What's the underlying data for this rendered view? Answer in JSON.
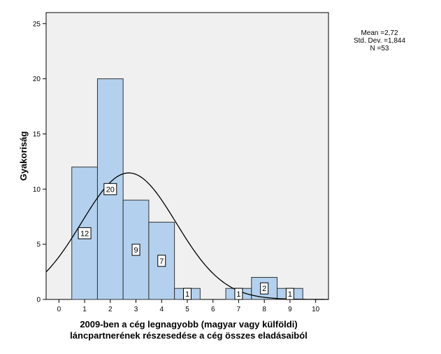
{
  "chart_data": {
    "type": "bar",
    "subtype": "histogram",
    "xlabel_line1": "2009-ben a cég legnagyobb (magyar vagy külföldi)",
    "xlabel_line2": "láncpartnerének részesedése a cég összes eladásaiból",
    "ylabel": "Gyakoriság",
    "xlim": [
      -0.5,
      10.5
    ],
    "ylim": [
      0,
      26
    ],
    "x_ticks": [
      "0",
      "1",
      "2",
      "3",
      "4",
      "5",
      "6",
      "7",
      "8",
      "9",
      "10"
    ],
    "y_ticks": [
      "0",
      "5",
      "10",
      "15",
      "20",
      "25"
    ],
    "bins": [
      {
        "x": 1,
        "count": 12,
        "label": "12"
      },
      {
        "x": 2,
        "count": 20,
        "label": "20"
      },
      {
        "x": 3,
        "count": 9,
        "label": "9"
      },
      {
        "x": 4,
        "count": 7,
        "label": "7"
      },
      {
        "x": 5,
        "count": 1,
        "label": "1"
      },
      {
        "x": 7,
        "count": 1,
        "label": "1"
      },
      {
        "x": 8,
        "count": 2,
        "label": "2"
      },
      {
        "x": 9,
        "count": 1,
        "label": "1"
      }
    ],
    "bin_width": 1,
    "normal_curve": true,
    "stats": {
      "mean": 2.72,
      "std_dev": 1.844,
      "n": 53,
      "mean_text": "Mean =2,72",
      "std_text": "Std. Dev. =1,844",
      "n_text": "N =53"
    },
    "colors": {
      "bar_fill": "#b3d1ee",
      "bar_stroke": "#333333",
      "plot_bg": "#f0f0f0",
      "curve": "#000000"
    }
  }
}
